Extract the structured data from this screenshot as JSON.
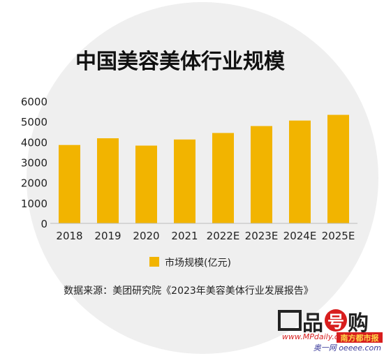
{
  "chart_data": {
    "type": "bar",
    "title": "中国美容美体行业规模",
    "categories": [
      "2018",
      "2019",
      "2020",
      "2021",
      "2022E",
      "2023E",
      "2024E",
      "2025E"
    ],
    "series": [
      {
        "name": "市场规模(亿元)",
        "values": [
          3850,
          4180,
          3820,
          4120,
          4440,
          4780,
          5050,
          5330
        ]
      }
    ],
    "ylim": [
      0,
      6000
    ],
    "yticks": [
      0,
      1000,
      2000,
      3000,
      4000,
      5000,
      6000
    ],
    "legend_position": "bottom-center",
    "grid": false
  },
  "source_note": "数据来源：美团研究院《2023年美容美体行业发展报告》",
  "colors": {
    "bar": "#F2B400",
    "circle_bg": "#EFEFEF",
    "logo_red": "#D81E1E"
  },
  "watermark": {
    "brand_part1": "品",
    "brand_char_round": "号",
    "brand_part2": "购",
    "url": "www.MPdaily.cn",
    "tag": "南方都市报",
    "sub": "奥一网 oeeee.com"
  }
}
